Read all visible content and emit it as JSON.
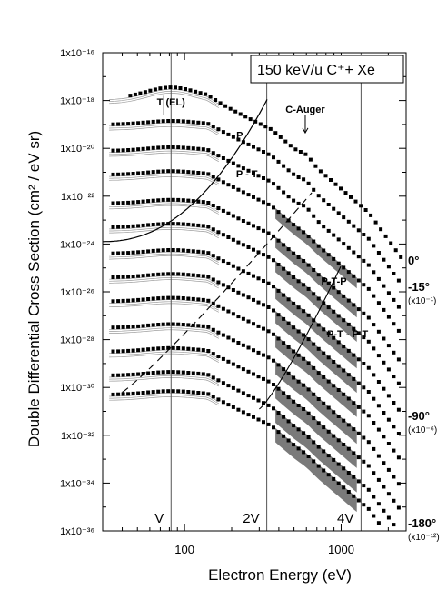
{
  "chart_data": {
    "type": "scatter",
    "title": "150 keV/u  C⁺+ Xe",
    "xlabel": "Electron Energy (eV)",
    "ylabel": "Double Differential Cross Section (cm² / eV sr)",
    "xscale": "log",
    "yscale": "log",
    "xlim": [
      30,
      2600
    ],
    "ylim": [
      1e-36,
      1e-16
    ],
    "x_ticks": [
      {
        "value": 100,
        "label": "100"
      },
      {
        "value": 1000,
        "label": "1000"
      }
    ],
    "y_ticks": [
      {
        "exp": -16,
        "label": "1x10⁻¹⁶"
      },
      {
        "exp": -18,
        "label": "1x10⁻¹⁸"
      },
      {
        "exp": -20,
        "label": "1x10⁻²⁰"
      },
      {
        "exp": -22,
        "label": "1x10⁻²²"
      },
      {
        "exp": -24,
        "label": "1x10⁻²⁴"
      },
      {
        "exp": -26,
        "label": "1x10⁻²⁶"
      },
      {
        "exp": -28,
        "label": "1x10⁻²⁸"
      },
      {
        "exp": -30,
        "label": "1x10⁻³⁰"
      },
      {
        "exp": -32,
        "label": "1x10⁻³²"
      },
      {
        "exp": -34,
        "label": "1x10⁻³⁴"
      },
      {
        "exp": -36,
        "label": "1x10⁻³⁶"
      }
    ],
    "reference_lines": [
      {
        "x": 82,
        "label": "V"
      },
      {
        "x": 335,
        "label": "2V"
      },
      {
        "x": 1340,
        "label": "4V"
      }
    ],
    "series": [
      {
        "angle": "0°",
        "scale": "",
        "y_at_40eV_exp": -17.9
      },
      {
        "angle": "-15°",
        "scale": "(x10⁻¹)",
        "y_at_40eV_exp": -19.0
      },
      {
        "exp_offset": -2,
        "y_at_40eV_exp": -20.1
      },
      {
        "exp_offset": -3,
        "y_at_40eV_exp": -21.1
      },
      {
        "exp_offset": -4,
        "y_at_40eV_exp": -22.3
      },
      {
        "exp_offset": -5,
        "y_at_40eV_exp": -23.3
      },
      {
        "angle": "-90°",
        "scale": "(x10⁻⁶)",
        "y_at_40eV_exp": -24.4
      },
      {
        "exp_offset": -7,
        "y_at_40eV_exp": -25.4
      },
      {
        "exp_offset": -8,
        "y_at_40eV_exp": -26.4
      },
      {
        "exp_offset": -9,
        "y_at_40eV_exp": -27.5
      },
      {
        "exp_offset": -10,
        "y_at_40eV_exp": -28.5
      },
      {
        "exp_offset": -11,
        "y_at_40eV_exp": -29.5
      },
      {
        "angle": "-180°",
        "scale": "(x10⁻¹²)",
        "y_at_40eV_exp": -30.3
      }
    ],
    "annotations": [
      {
        "text": "T (EL)",
        "x": 82,
        "y_exp": -18.2
      },
      {
        "text": "C-Auger",
        "x": 590,
        "y_exp": -18.5
      },
      {
        "text": "P",
        "x": 225,
        "y_exp": -19.6
      },
      {
        "text": "P - T",
        "x": 250,
        "y_exp": -21.2
      },
      {
        "text": "P-T-P",
        "x": 900,
        "y_exp": -25.7
      },
      {
        "text": "P-T - P-T",
        "x": 1100,
        "y_exp": -27.9
      }
    ]
  }
}
